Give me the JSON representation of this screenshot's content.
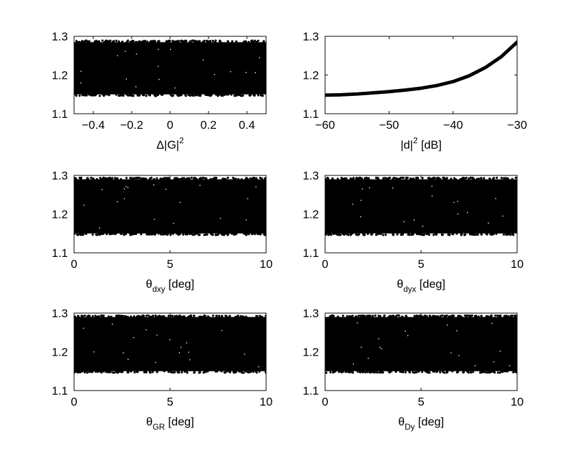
{
  "chart_data": [
    {
      "type": "scatter",
      "xlabel": {
        "main": "Δ|G|",
        "sub": "",
        "sup": "2",
        "tail": ""
      },
      "xlim": [
        -0.5,
        0.5
      ],
      "ylim": [
        1.1,
        1.3
      ],
      "xticks": [
        "−0.4",
        "−0.2",
        "0",
        "0.2",
        "0.4"
      ],
      "xtick_values": [
        -0.4,
        -0.2,
        0,
        0.2,
        0.4
      ],
      "yticks": [
        "1.1",
        "1.2",
        "1.3"
      ],
      "ytick_values": [
        1.1,
        1.2,
        1.3
      ],
      "band": {
        "ymin": 1.15,
        "ymax": 1.285
      },
      "color": "#000000"
    },
    {
      "type": "line",
      "xlabel": {
        "main": "|d|",
        "sub": "",
        "sup": "2",
        "tail": " [dB]"
      },
      "xlim": [
        -60,
        -30
      ],
      "ylim": [
        1.1,
        1.3
      ],
      "xticks": [
        "−60",
        "−50",
        "−40",
        "−30"
      ],
      "xtick_values": [
        -60,
        -50,
        -40,
        -30
      ],
      "yticks": [
        "1.1",
        "1.2",
        "1.3"
      ],
      "ytick_values": [
        1.1,
        1.2,
        1.3
      ],
      "curve": {
        "x": [
          -60,
          -57.5,
          -55,
          -52.5,
          -50,
          -47.5,
          -45,
          -42.5,
          -40,
          -37.5,
          -35,
          -32.5,
          -30
        ],
        "y": [
          1.148,
          1.149,
          1.151,
          1.154,
          1.157,
          1.161,
          1.166,
          1.173,
          1.183,
          1.198,
          1.219,
          1.247,
          1.285
        ]
      },
      "color": "#000000"
    },
    {
      "type": "scatter",
      "xlabel": {
        "main": "θ",
        "sub": "dxy",
        "sup": "",
        "tail": " [deg]"
      },
      "xlim": [
        0,
        10
      ],
      "ylim": [
        1.1,
        1.3
      ],
      "xticks": [
        "0",
        "5",
        "10"
      ],
      "xtick_values": [
        0,
        5,
        10
      ],
      "yticks": [
        "1.1",
        "1.2",
        "1.3"
      ],
      "ytick_values": [
        1.1,
        1.2,
        1.3
      ],
      "band": {
        "ymin": 1.15,
        "ymax": 1.29
      },
      "color": "#000000"
    },
    {
      "type": "scatter",
      "xlabel": {
        "main": "θ",
        "sub": "dyx",
        "sup": "",
        "tail": " [deg]"
      },
      "xlim": [
        0,
        10
      ],
      "ylim": [
        1.1,
        1.3
      ],
      "xticks": [
        "0",
        "5",
        "10"
      ],
      "xtick_values": [
        0,
        5,
        10
      ],
      "yticks": [
        "1.1",
        "1.2",
        "1.3"
      ],
      "ytick_values": [
        1.1,
        1.2,
        1.3
      ],
      "band": {
        "ymin": 1.15,
        "ymax": 1.29
      },
      "color": "#000000"
    },
    {
      "type": "scatter",
      "xlabel": {
        "main": "θ",
        "sub": "GR",
        "sup": "",
        "tail": " [deg]"
      },
      "xlim": [
        0,
        10
      ],
      "ylim": [
        1.1,
        1.3
      ],
      "xticks": [
        "0",
        "5",
        "10"
      ],
      "xtick_values": [
        0,
        5,
        10
      ],
      "yticks": [
        "1.1",
        "1.2",
        "1.3"
      ],
      "ytick_values": [
        1.1,
        1.2,
        1.3
      ],
      "band": {
        "ymin": 1.15,
        "ymax": 1.29
      },
      "color": "#000000"
    },
    {
      "type": "scatter",
      "xlabel": {
        "main": "θ",
        "sub": "Dy",
        "sup": "",
        "tail": " [deg]"
      },
      "xlim": [
        0,
        10
      ],
      "ylim": [
        1.1,
        1.3
      ],
      "xticks": [
        "0",
        "5",
        "10"
      ],
      "xtick_values": [
        0,
        5,
        10
      ],
      "yticks": [
        "1.1",
        "1.2",
        "1.3"
      ],
      "ytick_values": [
        1.1,
        1.2,
        1.3
      ],
      "band": {
        "ymin": 1.15,
        "ymax": 1.29
      },
      "color": "#000000"
    }
  ]
}
